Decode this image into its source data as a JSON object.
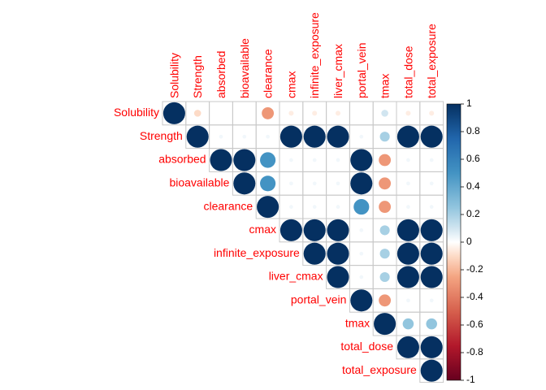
{
  "chart_data": {
    "type": "heatmap",
    "variables": [
      "Solubility",
      "Strength",
      "absorbed",
      "bioavailable",
      "clearance",
      "cmax",
      "infinite_exposure",
      "liver_cmax",
      "portal_vein",
      "tmax",
      "total_dose",
      "total_exposure"
    ],
    "matrix_part": "upper",
    "correlations": [
      [
        1.0,
        -0.1,
        0.0,
        0.0,
        -0.3,
        -0.05,
        -0.05,
        -0.05,
        0.0,
        0.1,
        -0.05,
        -0.05
      ],
      [
        -0.1,
        1.0,
        0.03,
        0.03,
        0.03,
        1.0,
        1.0,
        1.0,
        0.03,
        0.2,
        1.0,
        1.0
      ],
      [
        0.0,
        0.03,
        1.0,
        1.0,
        0.5,
        0.03,
        0.03,
        0.03,
        1.0,
        -0.3,
        0.03,
        0.03
      ],
      [
        0.0,
        0.03,
        1.0,
        1.0,
        0.5,
        0.03,
        0.03,
        0.03,
        1.0,
        -0.3,
        0.03,
        0.03
      ],
      [
        -0.3,
        0.03,
        0.5,
        0.5,
        1.0,
        0.03,
        0.03,
        0.03,
        0.5,
        -0.3,
        0.03,
        0.03
      ],
      [
        -0.05,
        1.0,
        0.03,
        0.03,
        0.03,
        1.0,
        1.0,
        1.0,
        0.03,
        0.2,
        1.0,
        1.0
      ],
      [
        -0.05,
        1.0,
        0.03,
        0.03,
        0.03,
        1.0,
        1.0,
        1.0,
        0.03,
        0.2,
        1.0,
        1.0
      ],
      [
        -0.05,
        1.0,
        0.03,
        0.03,
        0.03,
        1.0,
        1.0,
        1.0,
        0.03,
        0.2,
        1.0,
        1.0
      ],
      [
        0.0,
        0.03,
        1.0,
        1.0,
        0.5,
        0.03,
        0.03,
        0.03,
        1.0,
        -0.3,
        0.03,
        0.03
      ],
      [
        0.1,
        0.2,
        -0.3,
        -0.3,
        -0.3,
        0.2,
        0.2,
        0.2,
        -0.3,
        1.0,
        0.25,
        0.25
      ],
      [
        -0.05,
        1.0,
        0.03,
        0.03,
        0.03,
        1.0,
        1.0,
        1.0,
        0.03,
        0.25,
        1.0,
        1.0
      ],
      [
        -0.05,
        1.0,
        0.03,
        0.03,
        0.03,
        1.0,
        1.0,
        1.0,
        0.03,
        0.25,
        1.0,
        1.0
      ]
    ],
    "label_color": "#ff0000",
    "grid_color": "#c8c8c8",
    "color_scale": {
      "min": -1,
      "max": 1,
      "ticks": [
        "1",
        "0.8",
        "0.6",
        "0.4",
        "0.2",
        "0",
        "-0.2",
        "-0.4",
        "-0.6",
        "-0.8",
        "-1"
      ],
      "stops": [
        {
          "value": -1.0,
          "color": "#67001f"
        },
        {
          "value": -0.75,
          "color": "#b2182b"
        },
        {
          "value": -0.5,
          "color": "#d6604d"
        },
        {
          "value": -0.25,
          "color": "#f4a582"
        },
        {
          "value": -0.1,
          "color": "#fddbc7"
        },
        {
          "value": 0.0,
          "color": "#ffffff"
        },
        {
          "value": 0.1,
          "color": "#d1e5f0"
        },
        {
          "value": 0.25,
          "color": "#92c5de"
        },
        {
          "value": 0.5,
          "color": "#4393c3"
        },
        {
          "value": 0.75,
          "color": "#2166ac"
        },
        {
          "value": 1.0,
          "color": "#053061"
        }
      ]
    }
  }
}
